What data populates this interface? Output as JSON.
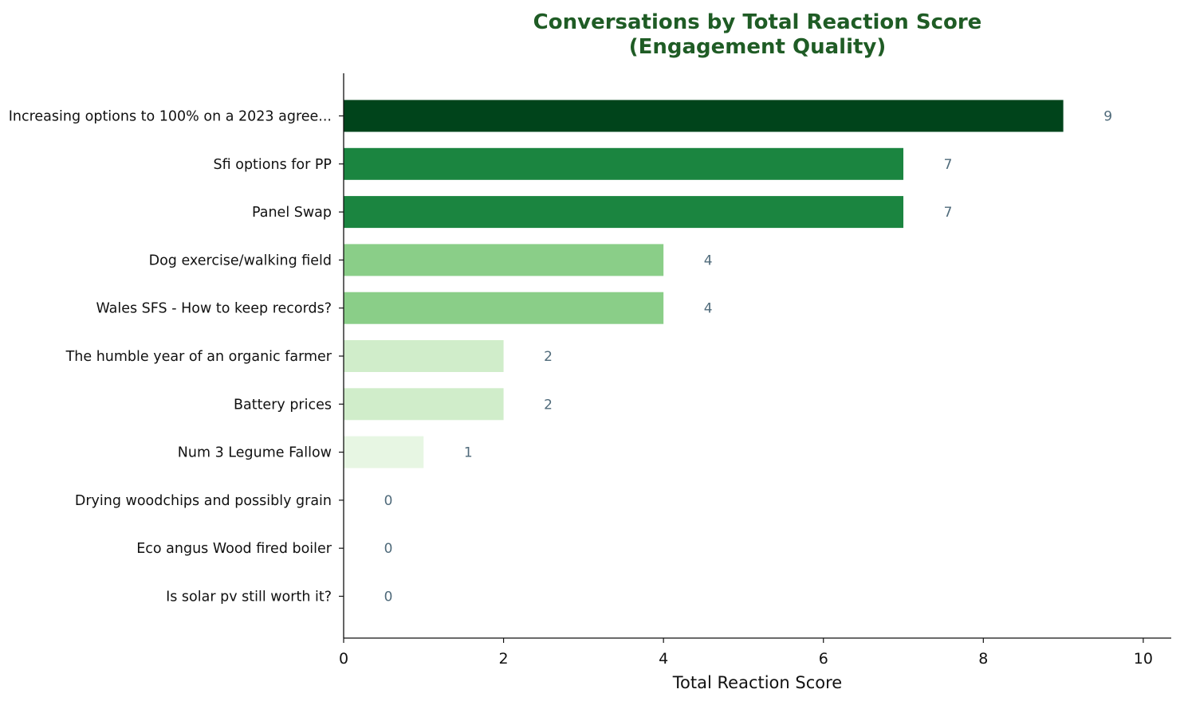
{
  "chart_data": {
    "type": "bar",
    "orientation": "horizontal",
    "title_lines": [
      "Conversations by Total Reaction Score",
      "(Engagement Quality)"
    ],
    "xlabel": "Total Reaction Score",
    "ylabel": "",
    "xlim": [
      0,
      10.35
    ],
    "xticks": [
      0,
      2,
      4,
      6,
      8,
      10
    ],
    "grid": false,
    "legend": "none",
    "categories": [
      "Increasing options to 100% on a 2023 agree...",
      "Sfi options for PP",
      "Panel Swap",
      "Dog exercise/walking field",
      "Wales SFS - How to keep records?",
      "The humble year of an organic farmer",
      "Battery prices",
      "Num 3 Legume Fallow",
      "Drying woodchips and possibly grain",
      "Eco angus Wood fired boiler",
      "Is solar pv still worth it?"
    ],
    "values": [
      9,
      7,
      7,
      4,
      4,
      2,
      2,
      1,
      0,
      0,
      0
    ],
    "bar_colors": [
      "#00441b",
      "#1b8540",
      "#1b8540",
      "#8ace88",
      "#8ace88",
      "#d0edca",
      "#d0edca",
      "#e7f6e3",
      "#f7fcf5",
      "#f7fcf5",
      "#f7fcf5"
    ]
  },
  "colors": {
    "title": "#1f5c25",
    "value_label": "#4f6a7a",
    "axis": "#111111"
  }
}
